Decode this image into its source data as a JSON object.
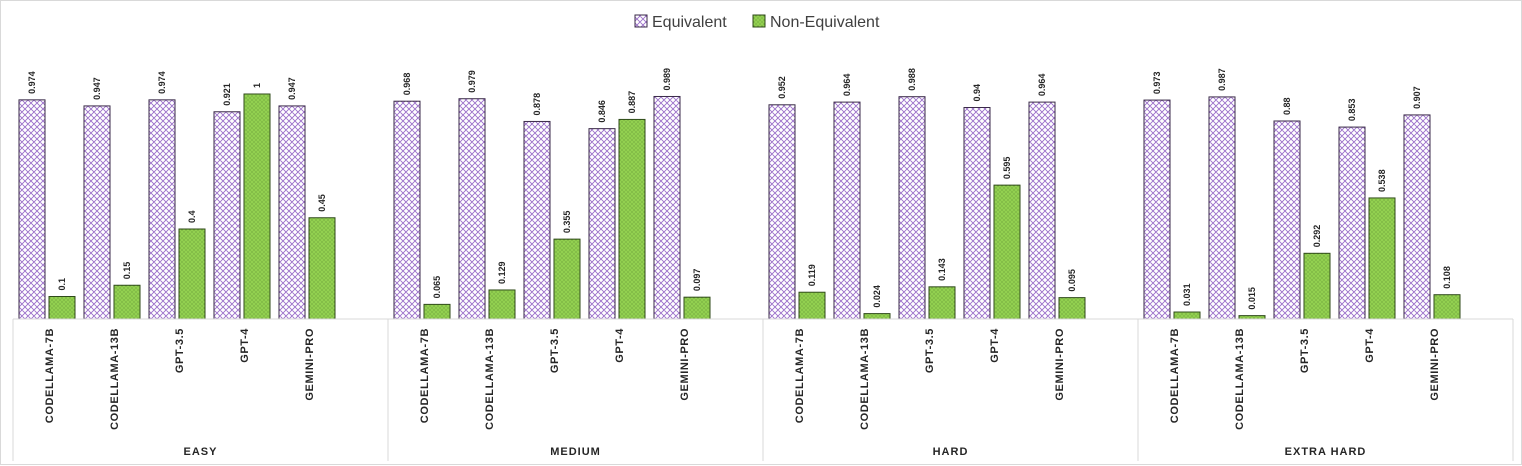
{
  "chart_data": {
    "type": "bar",
    "title": "",
    "xlabel": "",
    "ylabel": "",
    "ylim": [
      0,
      1.1
    ],
    "grid": false,
    "legend_position": "top-center",
    "groups": [
      "EASY",
      "MEDIUM",
      "HARD",
      "EXTRA HARD"
    ],
    "categories": [
      "CODELLAMA-7B",
      "CODELLAMA-13B",
      "GPT-3.5",
      "GPT-4",
      "GEMINI-PRO"
    ],
    "series": [
      {
        "name": "Equivalent",
        "color": "#7030a0",
        "pattern": "crosshatch",
        "values": [
          [
            0.974,
            0.947,
            0.974,
            0.921,
            0.947
          ],
          [
            0.968,
            0.979,
            0.878,
            0.846,
            0.989
          ],
          [
            0.952,
            0.964,
            0.988,
            0.94,
            0.964
          ],
          [
            0.973,
            0.987,
            0.88,
            0.853,
            0.907
          ]
        ]
      },
      {
        "name": "Non-Equivalent",
        "color": "#92d050",
        "pattern": "dots",
        "values": [
          [
            0.1,
            0.15,
            0.4,
            1,
            0.45
          ],
          [
            0.065,
            0.129,
            0.355,
            0.887,
            0.097
          ],
          [
            0.119,
            0.024,
            0.143,
            0.595,
            0.095
          ],
          [
            0.031,
            0.015,
            0.292,
            0.538,
            0.108
          ]
        ]
      }
    ]
  }
}
